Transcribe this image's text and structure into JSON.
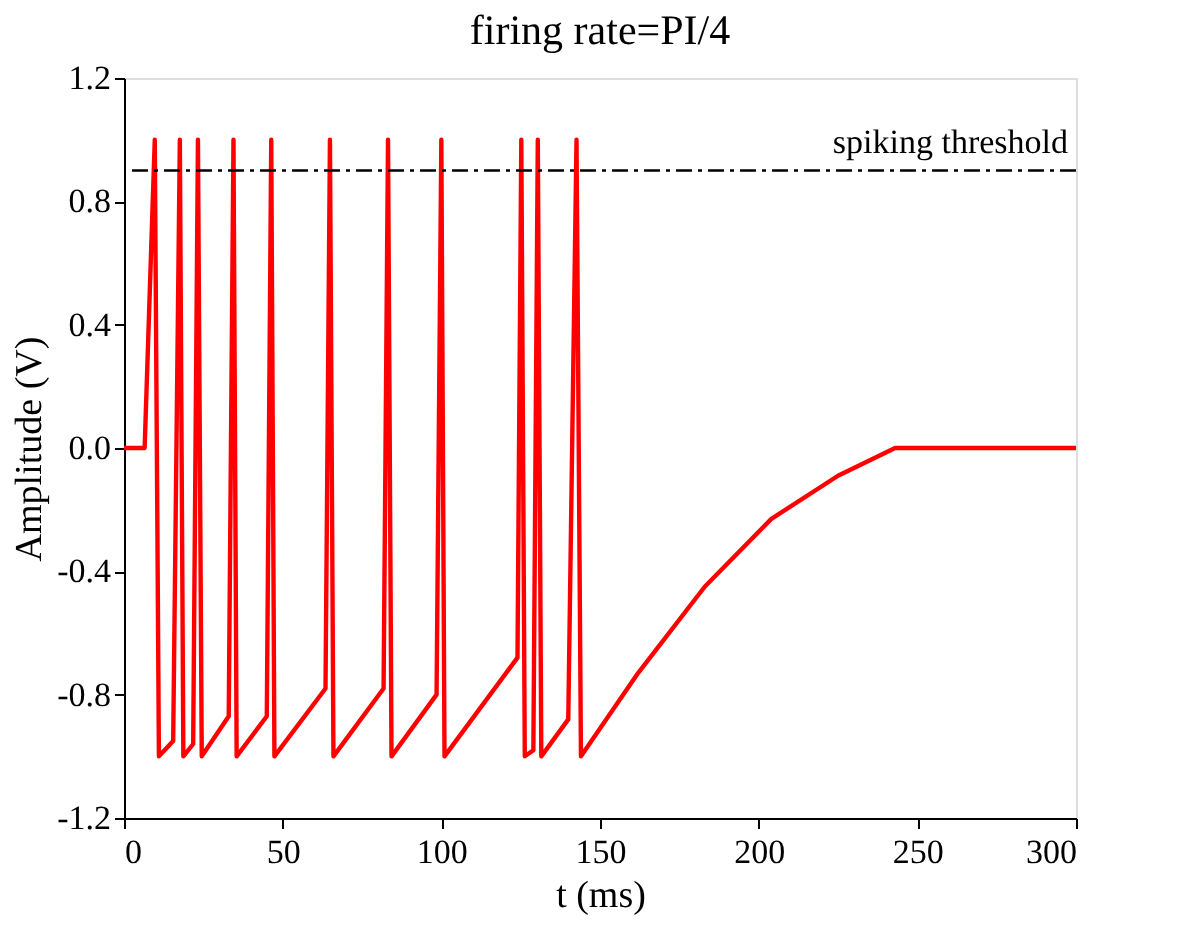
{
  "chart_data": {
    "type": "line",
    "title": "firing rate=PI/4",
    "xlabel": "t (ms)",
    "ylabel": "Amplitude (V)",
    "x": [
      0,
      6.5,
      9.7,
      11,
      15.5,
      17.6,
      18.7,
      21.8,
      23.3,
      24.5,
      33,
      34.5,
      35.5,
      45,
      46.4,
      47.4,
      63.5,
      64.9,
      66,
      81.8,
      83.2,
      84.3,
      98.5,
      100,
      101,
      124,
      125.2,
      126.3,
      129,
      130.4,
      131.5,
      140,
      142.6,
      144,
      162,
      183,
      204,
      225,
      243,
      300
    ],
    "series": [
      {
        "color": "#ff0000",
        "values": [
          0,
          0,
          1,
          -1,
          -0.95,
          1,
          -1,
          -0.96,
          1,
          -1,
          -0.87,
          1,
          -1,
          -0.87,
          1,
          -1,
          -0.78,
          1,
          -1,
          -0.78,
          1,
          -1,
          -0.8,
          1,
          -1,
          -0.68,
          1,
          -1,
          -0.98,
          1,
          -1,
          -0.88,
          1,
          -1,
          -0.73,
          -0.45,
          -0.23,
          -0.09,
          0,
          0
        ]
      }
    ],
    "xlim": [
      0,
      300
    ],
    "xticks": [
      0,
      50,
      100,
      150,
      200,
      250,
      300
    ],
    "ylim": [
      -1.2,
      1.2
    ],
    "yticks": [
      {
        "value": -1.2,
        "label": "-1.2"
      },
      {
        "value": -0.8,
        "label": "-0.8"
      },
      {
        "value": -0.4,
        "label": "-0.4"
      },
      {
        "value": 0,
        "label": "0.0"
      },
      {
        "value": 0.4,
        "label": "0.4"
      },
      {
        "value": 0.8,
        "label": "0.8"
      },
      {
        "value": 1.2,
        "label": "1.2"
      }
    ],
    "ref_lines": [
      {
        "axis": "y",
        "value": 0.9,
        "label": "spiking threshold",
        "color": "#000000",
        "line_style": "dashdot"
      }
    ],
    "grid": false,
    "marker": "none",
    "line_style": "solid"
  }
}
